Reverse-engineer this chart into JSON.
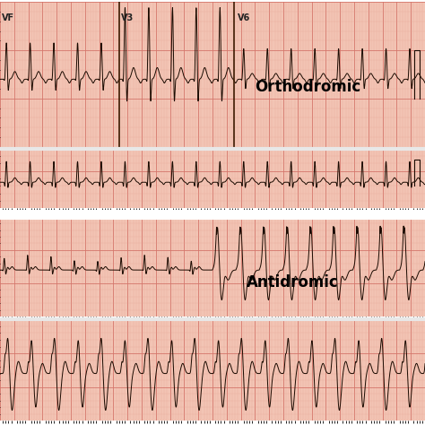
{
  "bg_color": "#f2c4b4",
  "grid_major_color": "#d4756a",
  "grid_minor_color": "#e8a090",
  "ecg_color": "#1a0a00",
  "label_orthodromic": "Orthodromic",
  "label_antidromic": "Antidromic",
  "label_vf": "VF",
  "label_v3": "V3",
  "label_v6": "V6",
  "label_fontsize": 12,
  "lead_fontsize": 7,
  "white_divider": "#f0f0f0",
  "fig_width": 4.74,
  "fig_height": 4.74,
  "dpi": 100
}
